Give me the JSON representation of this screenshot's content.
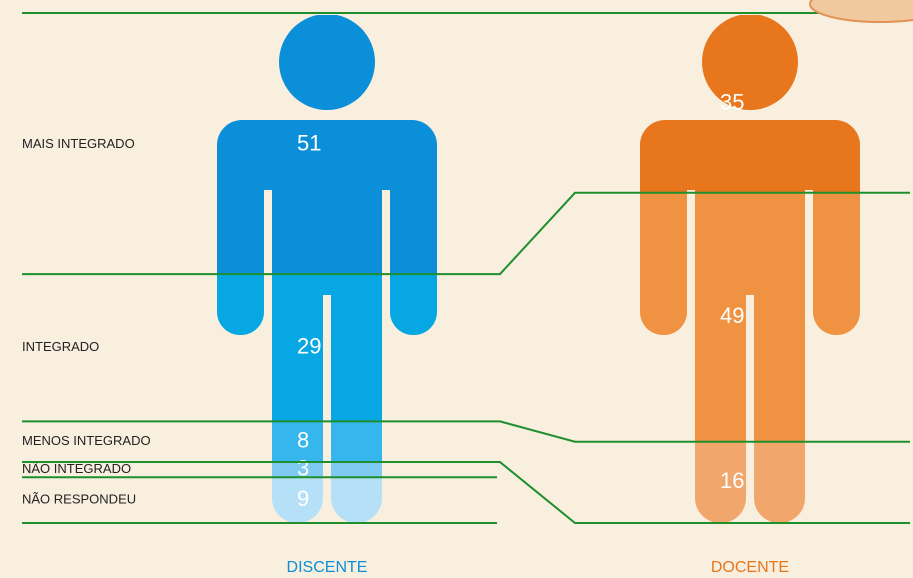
{
  "chart_data": {
    "type": "pictograph-stack",
    "categories": [
      "MAIS INTEGRADO",
      "INTEGRADO",
      "MENOS INTEGRADO",
      "NÃO INTEGRADO",
      "NÃO RESPONDEU"
    ],
    "series": [
      {
        "name": "DISCENTE",
        "color": "#0a8fd8",
        "colors": [
          "#0a8fd8",
          "#06a7e3",
          "#35b6ec",
          "#7ecaf2",
          "#b6e0f7"
        ],
        "values": [
          51,
          29,
          8,
          3,
          9
        ]
      },
      {
        "name": "DOCENTE",
        "color": "#e8761c",
        "colors": [
          "#e8761c",
          "#ef9342",
          "#f1a66b",
          "#f4bc92",
          "#f7d2b6"
        ],
        "values": [
          35,
          49,
          16,
          0,
          0
        ]
      }
    ],
    "ylim": [
      0,
      100
    ],
    "line_color": "#1f8f2e"
  }
}
